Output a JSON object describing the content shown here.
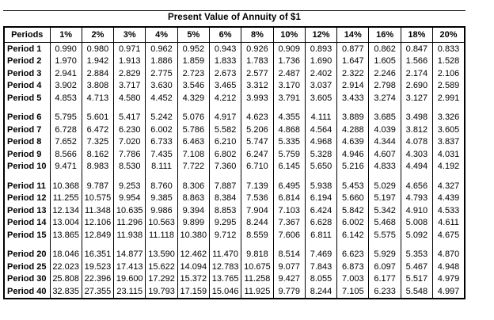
{
  "title": "Present Value of Annuity of $1",
  "table": {
    "columns": [
      "Periods",
      "1%",
      "2%",
      "3%",
      "4%",
      "5%",
      "6%",
      "8%",
      "10%",
      "12%",
      "14%",
      "16%",
      "18%",
      "20%"
    ],
    "groups": [
      {
        "rows": [
          {
            "label": "Period 1",
            "values": [
              "0.990",
              "0.980",
              "0.971",
              "0.962",
              "0.952",
              "0.943",
              "0.926",
              "0.909",
              "0.893",
              "0.877",
              "0.862",
              "0.847",
              "0.833"
            ]
          },
          {
            "label": "Period 2",
            "values": [
              "1.970",
              "1.942",
              "1.913",
              "1.886",
              "1.859",
              "1.833",
              "1.783",
              "1.736",
              "1.690",
              "1.647",
              "1.605",
              "1.566",
              "1.528"
            ]
          },
          {
            "label": "Period 3",
            "values": [
              "2.941",
              "2.884",
              "2.829",
              "2.775",
              "2.723",
              "2.673",
              "2.577",
              "2.487",
              "2.402",
              "2.322",
              "2.246",
              "2.174",
              "2.106"
            ]
          },
          {
            "label": "Period 4",
            "values": [
              "3.902",
              "3.808",
              "3.717",
              "3.630",
              "3.546",
              "3.465",
              "3.312",
              "3.170",
              "3.037",
              "2.914",
              "2.798",
              "2.690",
              "2.589"
            ]
          },
          {
            "label": "Period 5",
            "values": [
              "4.853",
              "4.713",
              "4.580",
              "4.452",
              "4.329",
              "4.212",
              "3.993",
              "3.791",
              "3.605",
              "3.433",
              "3.274",
              "3.127",
              "2.991"
            ]
          }
        ]
      },
      {
        "rows": [
          {
            "label": "Period 6",
            "values": [
              "5.795",
              "5.601",
              "5.417",
              "5.242",
              "5.076",
              "4.917",
              "4.623",
              "4.355",
              "4.111",
              "3.889",
              "3.685",
              "3.498",
              "3.326"
            ]
          },
          {
            "label": "Period 7",
            "values": [
              "6.728",
              "6.472",
              "6.230",
              "6.002",
              "5.786",
              "5.582",
              "5.206",
              "4.868",
              "4.564",
              "4.288",
              "4.039",
              "3.812",
              "3.605"
            ]
          },
          {
            "label": "Period 8",
            "values": [
              "7.652",
              "7.325",
              "7.020",
              "6.733",
              "6.463",
              "6.210",
              "5.747",
              "5.335",
              "4.968",
              "4.639",
              "4.344",
              "4.078",
              "3.837"
            ]
          },
          {
            "label": "Period 9",
            "values": [
              "8.566",
              "8.162",
              "7.786",
              "7.435",
              "7.108",
              "6.802",
              "6.247",
              "5.759",
              "5.328",
              "4.946",
              "4.607",
              "4.303",
              "4.031"
            ]
          },
          {
            "label": "Period 10",
            "values": [
              "9.471",
              "8.983",
              "8.530",
              "8.111",
              "7.722",
              "7.360",
              "6.710",
              "6.145",
              "5.650",
              "5.216",
              "4.833",
              "4.494",
              "4.192"
            ]
          }
        ]
      },
      {
        "rows": [
          {
            "label": "Period 11",
            "values": [
              "10.368",
              "9.787",
              "9.253",
              "8.760",
              "8.306",
              "7.887",
              "7.139",
              "6.495",
              "5.938",
              "5.453",
              "5.029",
              "4.656",
              "4.327"
            ]
          },
          {
            "label": "Period 12",
            "values": [
              "11.255",
              "10.575",
              "9.954",
              "9.385",
              "8.863",
              "8.384",
              "7.536",
              "6.814",
              "6.194",
              "5.660",
              "5.197",
              "4.793",
              "4.439"
            ]
          },
          {
            "label": "Period 13",
            "values": [
              "12.134",
              "11.348",
              "10.635",
              "9.986",
              "9.394",
              "8.853",
              "7.904",
              "7.103",
              "6.424",
              "5.842",
              "5.342",
              "4.910",
              "4.533"
            ]
          },
          {
            "label": "Period 14",
            "values": [
              "13.004",
              "12.106",
              "11.296",
              "10.563",
              "9.899",
              "9.295",
              "8.244",
              "7.367",
              "6.628",
              "6.002",
              "5.468",
              "5.008",
              "4.611"
            ]
          },
          {
            "label": "Period 15",
            "values": [
              "13.865",
              "12.849",
              "11.938",
              "11.118",
              "10.380",
              "9.712",
              "8.559",
              "7.606",
              "6.811",
              "6.142",
              "5.575",
              "5.092",
              "4.675"
            ]
          }
        ]
      },
      {
        "rows": [
          {
            "label": "Period 20",
            "values": [
              "18.046",
              "16.351",
              "14.877",
              "13.590",
              "12.462",
              "11.470",
              "9.818",
              "8.514",
              "7.469",
              "6.623",
              "5.929",
              "5.353",
              "4.870"
            ]
          },
          {
            "label": "Period 25",
            "values": [
              "22.023",
              "19.523",
              "17.413",
              "15.622",
              "14.094",
              "12.783",
              "10.675",
              "9.077",
              "7.843",
              "6.873",
              "6.097",
              "5.467",
              "4.948"
            ]
          },
          {
            "label": "Period 30",
            "values": [
              "25.808",
              "22.396",
              "19.600",
              "17.292",
              "15.372",
              "13.765",
              "11.258",
              "9.427",
              "8.055",
              "7.003",
              "6.177",
              "5.517",
              "4.979"
            ]
          },
          {
            "label": "Period 40",
            "values": [
              "32.835",
              "27.355",
              "23.115",
              "19.793",
              "17.159",
              "15.046",
              "11.925",
              "9.779",
              "8.244",
              "7.105",
              "6.233",
              "5.548",
              "4.997"
            ]
          }
        ]
      }
    ]
  }
}
